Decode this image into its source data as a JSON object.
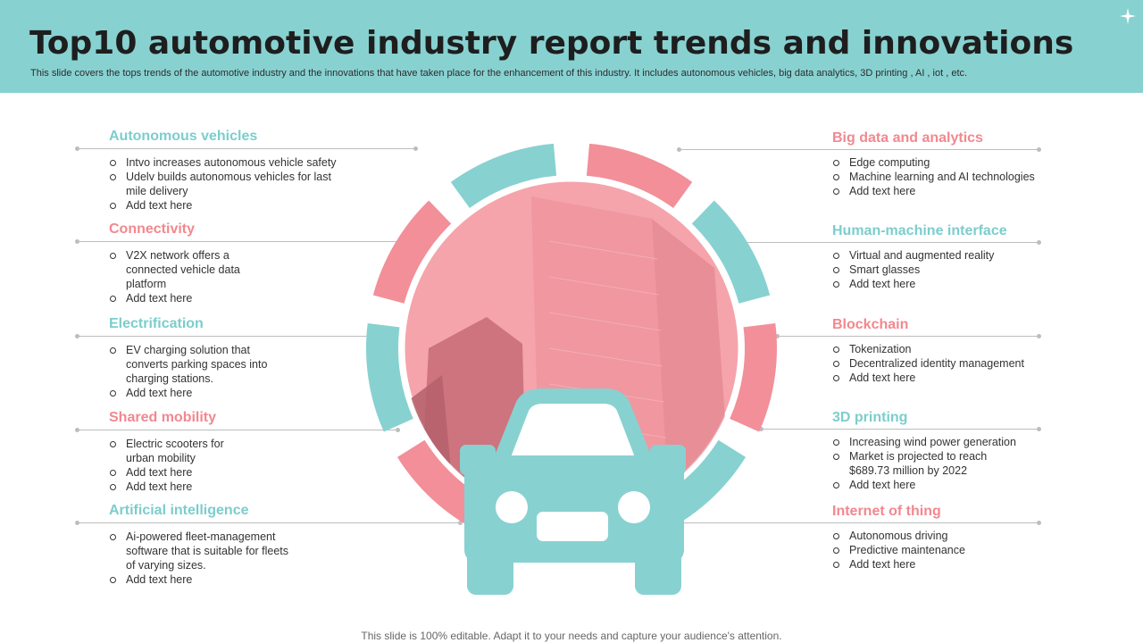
{
  "header": {
    "title": "Top10 automotive industry report trends and innovations",
    "subtitle": "This slide covers the tops trends of the automotive industry and the innovations that have taken place for the enhancement of this industry. It includes autonomous vehicles, big data analytics, 3D printing , AI , iot , etc."
  },
  "colors": {
    "teal": "#88d1d1",
    "pink": "#f28f98",
    "heading_teal": "#7ccdcd",
    "heading_pink": "#f2888f"
  },
  "left": [
    {
      "heading": "Autonomous vehicles",
      "items": [
        "Intvo increases autonomous vehicle safety",
        "Udelv builds autonomous vehicles for last mile delivery",
        "Add text here"
      ]
    },
    {
      "heading": "Connectivity",
      "items": [
        "V2X network offers a connected vehicle data platform",
        "Add text here"
      ]
    },
    {
      "heading": "Electrification",
      "items": [
        "EV charging solution that converts parking spaces into charging stations.",
        "Add text here"
      ]
    },
    {
      "heading": "Shared mobility",
      "items": [
        "Electric scooters for urban mobility",
        "Add text here",
        "Add text here"
      ]
    },
    {
      "heading": "Artificial intelligence",
      "items": [
        "Ai-powered fleet-management software that is suitable for fleets of varying sizes.",
        "Add text here"
      ]
    }
  ],
  "right": [
    {
      "heading": "Big data and analytics",
      "items": [
        "Edge computing",
        "Machine learning and AI technologies",
        "Add text here"
      ]
    },
    {
      "heading": "Human-machine interface",
      "items": [
        "Virtual and augmented reality",
        "Smart glasses",
        "Add text here"
      ]
    },
    {
      "heading": "Blockchain",
      "items": [
        "Tokenization",
        "Decentralized identity management",
        "Add text here"
      ]
    },
    {
      "heading": "3D printing",
      "items": [
        "Increasing wind power generation",
        "Market is projected to reach $689.73 million by 2022",
        "Add text here"
      ]
    },
    {
      "heading": "Internet of thing",
      "items": [
        "Autonomous driving",
        "Predictive maintenance",
        "Add text here"
      ]
    }
  ],
  "footer": "This slide is 100% editable. Adapt it to your needs and capture your audience's attention."
}
